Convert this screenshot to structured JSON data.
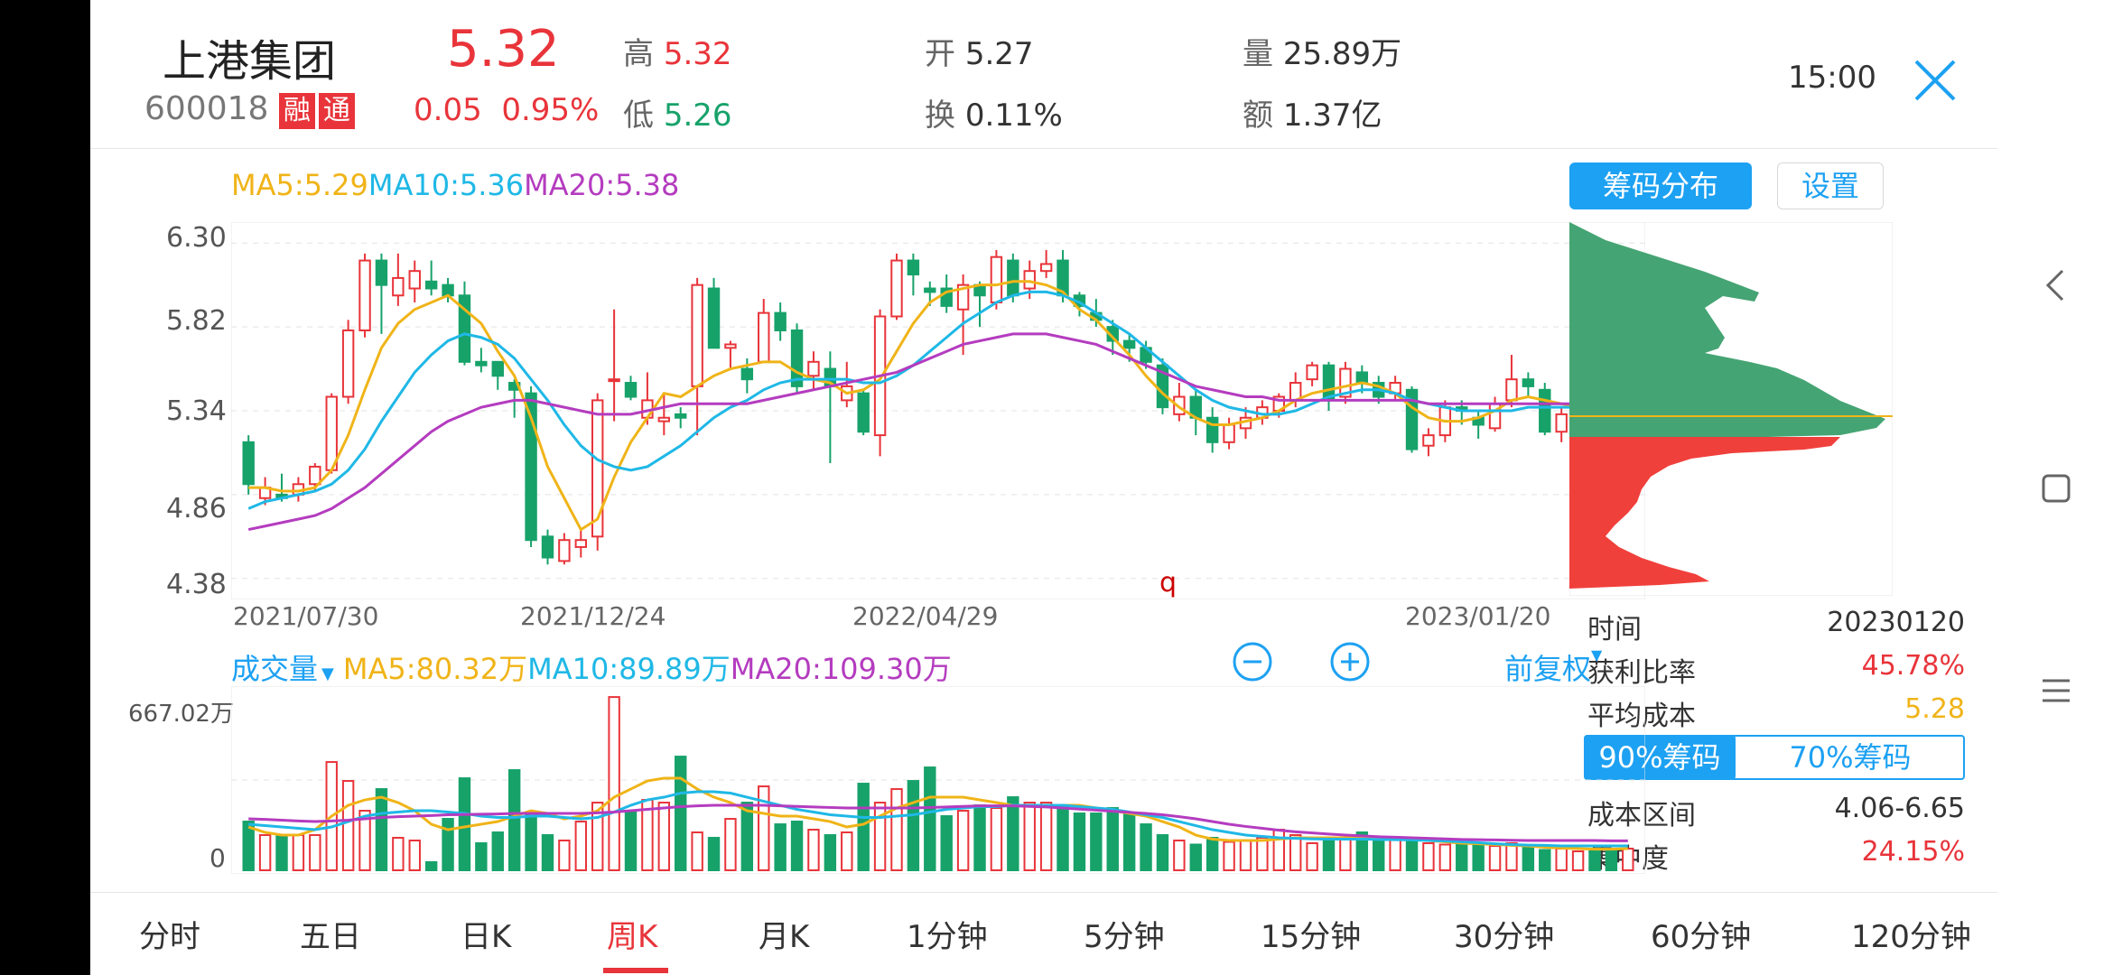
{
  "stock": {
    "name": "上港集团",
    "code": "600018",
    "badges": [
      "融",
      "通"
    ],
    "price": "5.32",
    "change": "0.05",
    "change_pct": "0.95%",
    "high_label": "高",
    "high": "5.32",
    "low_label": "低",
    "low": "5.26",
    "open_label": "开",
    "open": "5.27",
    "turnover_label": "换",
    "turnover": "0.11%",
    "volume_label": "量",
    "volume": "25.89万",
    "amount_label": "额",
    "amount": "1.37亿",
    "time": "15:00"
  },
  "ma_legend": {
    "ma5": "MA5:5.29",
    "ma10": "MA10:5.36",
    "ma20": "MA20:5.38"
  },
  "panel_buttons": {
    "chip_dist": "筹码分布",
    "settings": "设置"
  },
  "price_axis": [
    "6.30",
    "5.82",
    "5.34",
    "4.86",
    "4.38"
  ],
  "date_axis": [
    "2021/07/30",
    "2021/12/24",
    "2022/04/29",
    "2023/01/20"
  ],
  "marker_letter": "q",
  "volume_legend": {
    "title": "成交量",
    "ma5": "MA5:80.32万",
    "ma10": "MA10:89.89万",
    "ma20": "MA20:109.30万",
    "max_label": "667.02万",
    "zero_label": "0",
    "adjust": "前复权"
  },
  "chip_info": {
    "time_label": "时间",
    "time": "20230120",
    "profit_label": "获利比率",
    "profit": "45.78%",
    "avg_label": "平均成本",
    "avg": "5.28",
    "tab90": "90%筹码",
    "tab70": "70%筹码",
    "range_label": "成本区间",
    "range": "4.06-6.65",
    "conc_label": "集中度",
    "conc": "24.15%"
  },
  "period_tabs": [
    "分时",
    "五日",
    "日K",
    "周K",
    "月K",
    "1分钟",
    "5分钟",
    "15分钟",
    "30分钟",
    "60分钟",
    "120分钟"
  ],
  "active_tab": "周K",
  "colors": {
    "up": "#e8343a",
    "down": "#17a26a",
    "ma5": "#f0b418",
    "ma10": "#1fb8e6",
    "ma20": "#b43cbf",
    "accent": "#1da1f2"
  },
  "chart_data": {
    "type": "candlestick",
    "period": "weekly",
    "y_range": [
      4.38,
      6.3
    ],
    "x_labels": [
      "2021/07/30",
      "2021/12/24",
      "2022/04/29",
      "2023/01/20"
    ],
    "candles_ohlc": [
      [
        5.16,
        4.92,
        5.2,
        4.86
      ],
      [
        4.84,
        4.9,
        4.96,
        4.8
      ],
      [
        4.86,
        4.84,
        4.98,
        4.82
      ],
      [
        4.86,
        4.92,
        4.96,
        4.82
      ],
      [
        4.92,
        5.02,
        5.04,
        4.88
      ],
      [
        5.0,
        5.42,
        5.44,
        4.98
      ],
      [
        5.42,
        5.8,
        5.86,
        5.38
      ],
      [
        5.8,
        6.2,
        6.24,
        5.76
      ],
      [
        6.2,
        6.06,
        6.24,
        5.78
      ],
      [
        6.0,
        6.1,
        6.24,
        5.94
      ],
      [
        6.04,
        6.14,
        6.2,
        5.96
      ],
      [
        6.08,
        6.04,
        6.2,
        6.0
      ],
      [
        6.06,
        6.0,
        6.1,
        5.96
      ],
      [
        6.0,
        5.62,
        6.08,
        5.6
      ],
      [
        5.62,
        5.6,
        5.7,
        5.56
      ],
      [
        5.62,
        5.54,
        5.62,
        5.46
      ],
      [
        5.5,
        5.46,
        5.52,
        5.3
      ],
      [
        5.44,
        4.6,
        5.48,
        4.56
      ],
      [
        4.62,
        4.5,
        4.66,
        4.46
      ],
      [
        4.48,
        4.6,
        4.64,
        4.46
      ],
      [
        4.56,
        4.6,
        4.66,
        4.5
      ],
      [
        4.62,
        5.4,
        5.44,
        4.54
      ],
      [
        5.52,
        5.52,
        5.92,
        5.28
      ],
      [
        5.5,
        5.42,
        5.54,
        5.4
      ],
      [
        5.3,
        5.4,
        5.56,
        5.26
      ],
      [
        5.28,
        5.3,
        5.44,
        5.2
      ],
      [
        5.32,
        5.3,
        5.36,
        5.24
      ],
      [
        5.48,
        6.06,
        6.1,
        5.2
      ],
      [
        6.04,
        5.7,
        6.1,
        5.7
      ],
      [
        5.7,
        5.72,
        5.74,
        5.58
      ],
      [
        5.58,
        5.52,
        5.64,
        5.44
      ],
      [
        5.62,
        5.9,
        5.98,
        5.62
      ],
      [
        5.9,
        5.8,
        5.96,
        5.74
      ],
      [
        5.8,
        5.48,
        5.84,
        5.44
      ],
      [
        5.54,
        5.62,
        5.68,
        5.46
      ],
      [
        5.58,
        5.48,
        5.68,
        5.04
      ],
      [
        5.4,
        5.48,
        5.62,
        5.36
      ],
      [
        5.44,
        5.22,
        5.46,
        5.2
      ],
      [
        5.2,
        5.88,
        5.92,
        5.08
      ],
      [
        5.88,
        6.2,
        6.24,
        5.86
      ],
      [
        6.2,
        6.12,
        6.24,
        6.0
      ],
      [
        6.04,
        6.02,
        6.08,
        5.94
      ],
      [
        6.04,
        5.94,
        6.12,
        5.9
      ],
      [
        5.92,
        6.06,
        6.12,
        5.66
      ],
      [
        6.06,
        6.0,
        6.08,
        5.82
      ],
      [
        5.96,
        6.22,
        6.26,
        5.92
      ],
      [
        6.2,
        6.0,
        6.24,
        5.96
      ],
      [
        6.04,
        6.14,
        6.2,
        5.98
      ],
      [
        6.14,
        6.18,
        6.26,
        6.1
      ],
      [
        6.2,
        6.0,
        6.26,
        5.96
      ],
      [
        6.0,
        5.94,
        6.02,
        5.88
      ],
      [
        5.9,
        5.86,
        5.98,
        5.82
      ],
      [
        5.82,
        5.74,
        5.86,
        5.66
      ],
      [
        5.74,
        5.7,
        5.78,
        5.62
      ],
      [
        5.7,
        5.62,
        5.74,
        5.58
      ],
      [
        5.6,
        5.36,
        5.64,
        5.32
      ],
      [
        5.32,
        5.42,
        5.5,
        5.28
      ],
      [
        5.42,
        5.3,
        5.46,
        5.2
      ],
      [
        5.3,
        5.16,
        5.36,
        5.1
      ],
      [
        5.16,
        5.26,
        5.3,
        5.12
      ],
      [
        5.24,
        5.3,
        5.36,
        5.18
      ],
      [
        5.3,
        5.36,
        5.4,
        5.26
      ],
      [
        5.34,
        5.42,
        5.44,
        5.3
      ],
      [
        5.4,
        5.5,
        5.56,
        5.36
      ],
      [
        5.52,
        5.6,
        5.62,
        5.48
      ],
      [
        5.6,
        5.4,
        5.62,
        5.34
      ],
      [
        5.42,
        5.58,
        5.62,
        5.38
      ],
      [
        5.56,
        5.5,
        5.6,
        5.44
      ],
      [
        5.5,
        5.42,
        5.54,
        5.38
      ],
      [
        5.44,
        5.5,
        5.54,
        5.4
      ],
      [
        5.46,
        5.12,
        5.48,
        5.1
      ],
      [
        5.14,
        5.2,
        5.24,
        5.08
      ],
      [
        5.2,
        5.36,
        5.4,
        5.16
      ],
      [
        5.36,
        5.34,
        5.4,
        5.26
      ],
      [
        5.3,
        5.26,
        5.34,
        5.18
      ],
      [
        5.24,
        5.38,
        5.42,
        5.22
      ],
      [
        5.4,
        5.52,
        5.66,
        5.36
      ],
      [
        5.52,
        5.48,
        5.56,
        5.42
      ],
      [
        5.46,
        5.22,
        5.5,
        5.2
      ],
      [
        5.22,
        5.32,
        5.36,
        5.16
      ],
      [
        5.32,
        5.36,
        5.4,
        5.28
      ],
      [
        5.36,
        5.34,
        5.4,
        5.3
      ],
      [
        5.3,
        5.24,
        5.36,
        5.2
      ],
      [
        5.26,
        5.32,
        5.34,
        5.22
      ]
    ],
    "ma5": [
      4.9,
      4.9,
      4.88,
      4.88,
      4.9,
      5.0,
      5.2,
      5.46,
      5.7,
      5.84,
      5.92,
      5.96,
      6.0,
      5.92,
      5.84,
      5.68,
      5.54,
      5.3,
      5.02,
      4.84,
      4.66,
      4.72,
      4.96,
      5.16,
      5.3,
      5.44,
      5.42,
      5.48,
      5.54,
      5.58,
      5.6,
      5.62,
      5.62,
      5.56,
      5.52,
      5.5,
      5.44,
      5.46,
      5.52,
      5.68,
      5.84,
      5.96,
      6.02,
      6.04,
      6.06,
      6.06,
      6.08,
      6.08,
      6.06,
      6.02,
      5.92,
      5.86,
      5.76,
      5.66,
      5.54,
      5.44,
      5.36,
      5.3,
      5.26,
      5.26,
      5.28,
      5.3,
      5.34,
      5.4,
      5.44,
      5.46,
      5.48,
      5.5,
      5.48,
      5.44,
      5.36,
      5.3,
      5.28,
      5.28,
      5.3,
      5.34,
      5.4,
      5.42,
      5.4,
      5.38,
      5.36,
      5.34,
      5.32,
      5.3
    ],
    "ma10": [
      4.78,
      4.82,
      4.84,
      4.86,
      4.88,
      4.92,
      5.0,
      5.12,
      5.28,
      5.42,
      5.56,
      5.66,
      5.74,
      5.78,
      5.76,
      5.72,
      5.64,
      5.52,
      5.4,
      5.26,
      5.14,
      5.06,
      5.02,
      5.0,
      5.02,
      5.08,
      5.14,
      5.22,
      5.3,
      5.36,
      5.4,
      5.46,
      5.5,
      5.52,
      5.52,
      5.52,
      5.52,
      5.5,
      5.5,
      5.54,
      5.6,
      5.68,
      5.76,
      5.84,
      5.9,
      5.96,
      6.0,
      6.02,
      6.02,
      6.0,
      5.96,
      5.9,
      5.84,
      5.78,
      5.7,
      5.62,
      5.54,
      5.46,
      5.4,
      5.36,
      5.34,
      5.32,
      5.32,
      5.34,
      5.38,
      5.42,
      5.44,
      5.46,
      5.46,
      5.44,
      5.4,
      5.38,
      5.36,
      5.34,
      5.34,
      5.34,
      5.34,
      5.36,
      5.36,
      5.36,
      5.36,
      5.36,
      5.36,
      5.36
    ],
    "ma20": [
      4.66,
      4.68,
      4.7,
      4.72,
      4.74,
      4.78,
      4.84,
      4.9,
      4.98,
      5.06,
      5.14,
      5.22,
      5.28,
      5.32,
      5.36,
      5.38,
      5.4,
      5.4,
      5.38,
      5.36,
      5.34,
      5.32,
      5.32,
      5.32,
      5.34,
      5.36,
      5.38,
      5.38,
      5.38,
      5.38,
      5.38,
      5.4,
      5.42,
      5.44,
      5.46,
      5.48,
      5.5,
      5.52,
      5.54,
      5.56,
      5.6,
      5.64,
      5.68,
      5.72,
      5.74,
      5.76,
      5.78,
      5.78,
      5.78,
      5.76,
      5.74,
      5.72,
      5.68,
      5.64,
      5.6,
      5.56,
      5.52,
      5.48,
      5.46,
      5.44,
      5.42,
      5.42,
      5.4,
      5.4,
      5.4,
      5.4,
      5.4,
      5.4,
      5.4,
      5.4,
      5.4,
      5.38,
      5.38,
      5.38,
      5.38,
      5.38,
      5.38,
      5.38,
      5.38,
      5.38,
      5.38,
      5.38,
      5.38,
      5.38
    ],
    "volume_max": 667.02,
    "volumes": [
      180,
      130,
      130,
      130,
      130,
      400,
      330,
      220,
      300,
      120,
      110,
      30,
      190,
      340,
      100,
      140,
      370,
      210,
      130,
      110,
      180,
      250,
      640,
      220,
      260,
      250,
      420,
      140,
      120,
      190,
      250,
      310,
      170,
      180,
      150,
      130,
      140,
      320,
      250,
      300,
      330,
      380,
      200,
      220,
      240,
      230,
      270,
      250,
      250,
      240,
      210,
      210,
      230,
      210,
      170,
      130,
      110,
      95,
      120,
      105,
      110,
      120,
      150,
      130,
      100,
      110,
      120,
      140,
      110,
      115,
      110,
      100,
      95,
      100,
      95,
      90,
      100,
      85,
      75,
      80,
      70,
      70,
      75,
      80
    ],
    "vol_ma5": [
      160,
      140,
      130,
      130,
      150,
      200,
      240,
      260,
      270,
      250,
      220,
      170,
      150,
      160,
      170,
      180,
      200,
      220,
      210,
      190,
      200,
      220,
      270,
      300,
      330,
      340,
      340,
      300,
      270,
      250,
      220,
      210,
      200,
      200,
      190,
      180,
      160,
      170,
      200,
      230,
      250,
      270,
      270,
      270,
      260,
      250,
      240,
      240,
      240,
      240,
      240,
      230,
      220,
      210,
      200,
      180,
      160,
      130,
      115,
      110,
      110,
      110,
      115,
      120,
      120,
      120,
      120,
      120,
      120,
      115,
      115,
      110,
      105,
      100,
      98,
      95,
      92,
      90,
      85,
      82,
      80,
      78,
      78,
      80
    ],
    "vol_ma10": [
      170,
      165,
      160,
      155,
      150,
      160,
      180,
      200,
      210,
      215,
      220,
      220,
      215,
      210,
      200,
      195,
      195,
      200,
      200,
      195,
      190,
      195,
      215,
      240,
      260,
      270,
      285,
      290,
      290,
      285,
      270,
      255,
      240,
      225,
      215,
      205,
      200,
      195,
      195,
      200,
      205,
      215,
      225,
      230,
      235,
      235,
      240,
      240,
      240,
      240,
      235,
      230,
      225,
      215,
      205,
      195,
      180,
      165,
      150,
      140,
      130,
      125,
      120,
      118,
      116,
      115,
      115,
      115,
      114,
      113,
      112,
      110,
      108,
      105,
      102,
      98,
      95,
      93,
      92,
      90,
      90,
      90,
      90,
      90
    ],
    "vol_ma20": [
      190,
      188,
      185,
      182,
      180,
      182,
      185,
      190,
      195,
      198,
      200,
      202,
      205,
      206,
      207,
      208,
      210,
      210,
      210,
      210,
      210,
      212,
      215,
      220,
      225,
      230,
      235,
      238,
      240,
      240,
      240,
      240,
      238,
      236,
      234,
      232,
      230,
      230,
      230,
      230,
      230,
      232,
      234,
      236,
      238,
      238,
      238,
      236,
      234,
      230,
      226,
      222,
      218,
      214,
      210,
      205,
      198,
      190,
      180,
      170,
      162,
      155,
      148,
      142,
      138,
      134,
      130,
      127,
      124,
      122,
      120,
      118,
      116,
      114,
      113,
      112,
      111,
      110,
      110,
      110,
      110,
      110,
      109,
      109
    ]
  }
}
